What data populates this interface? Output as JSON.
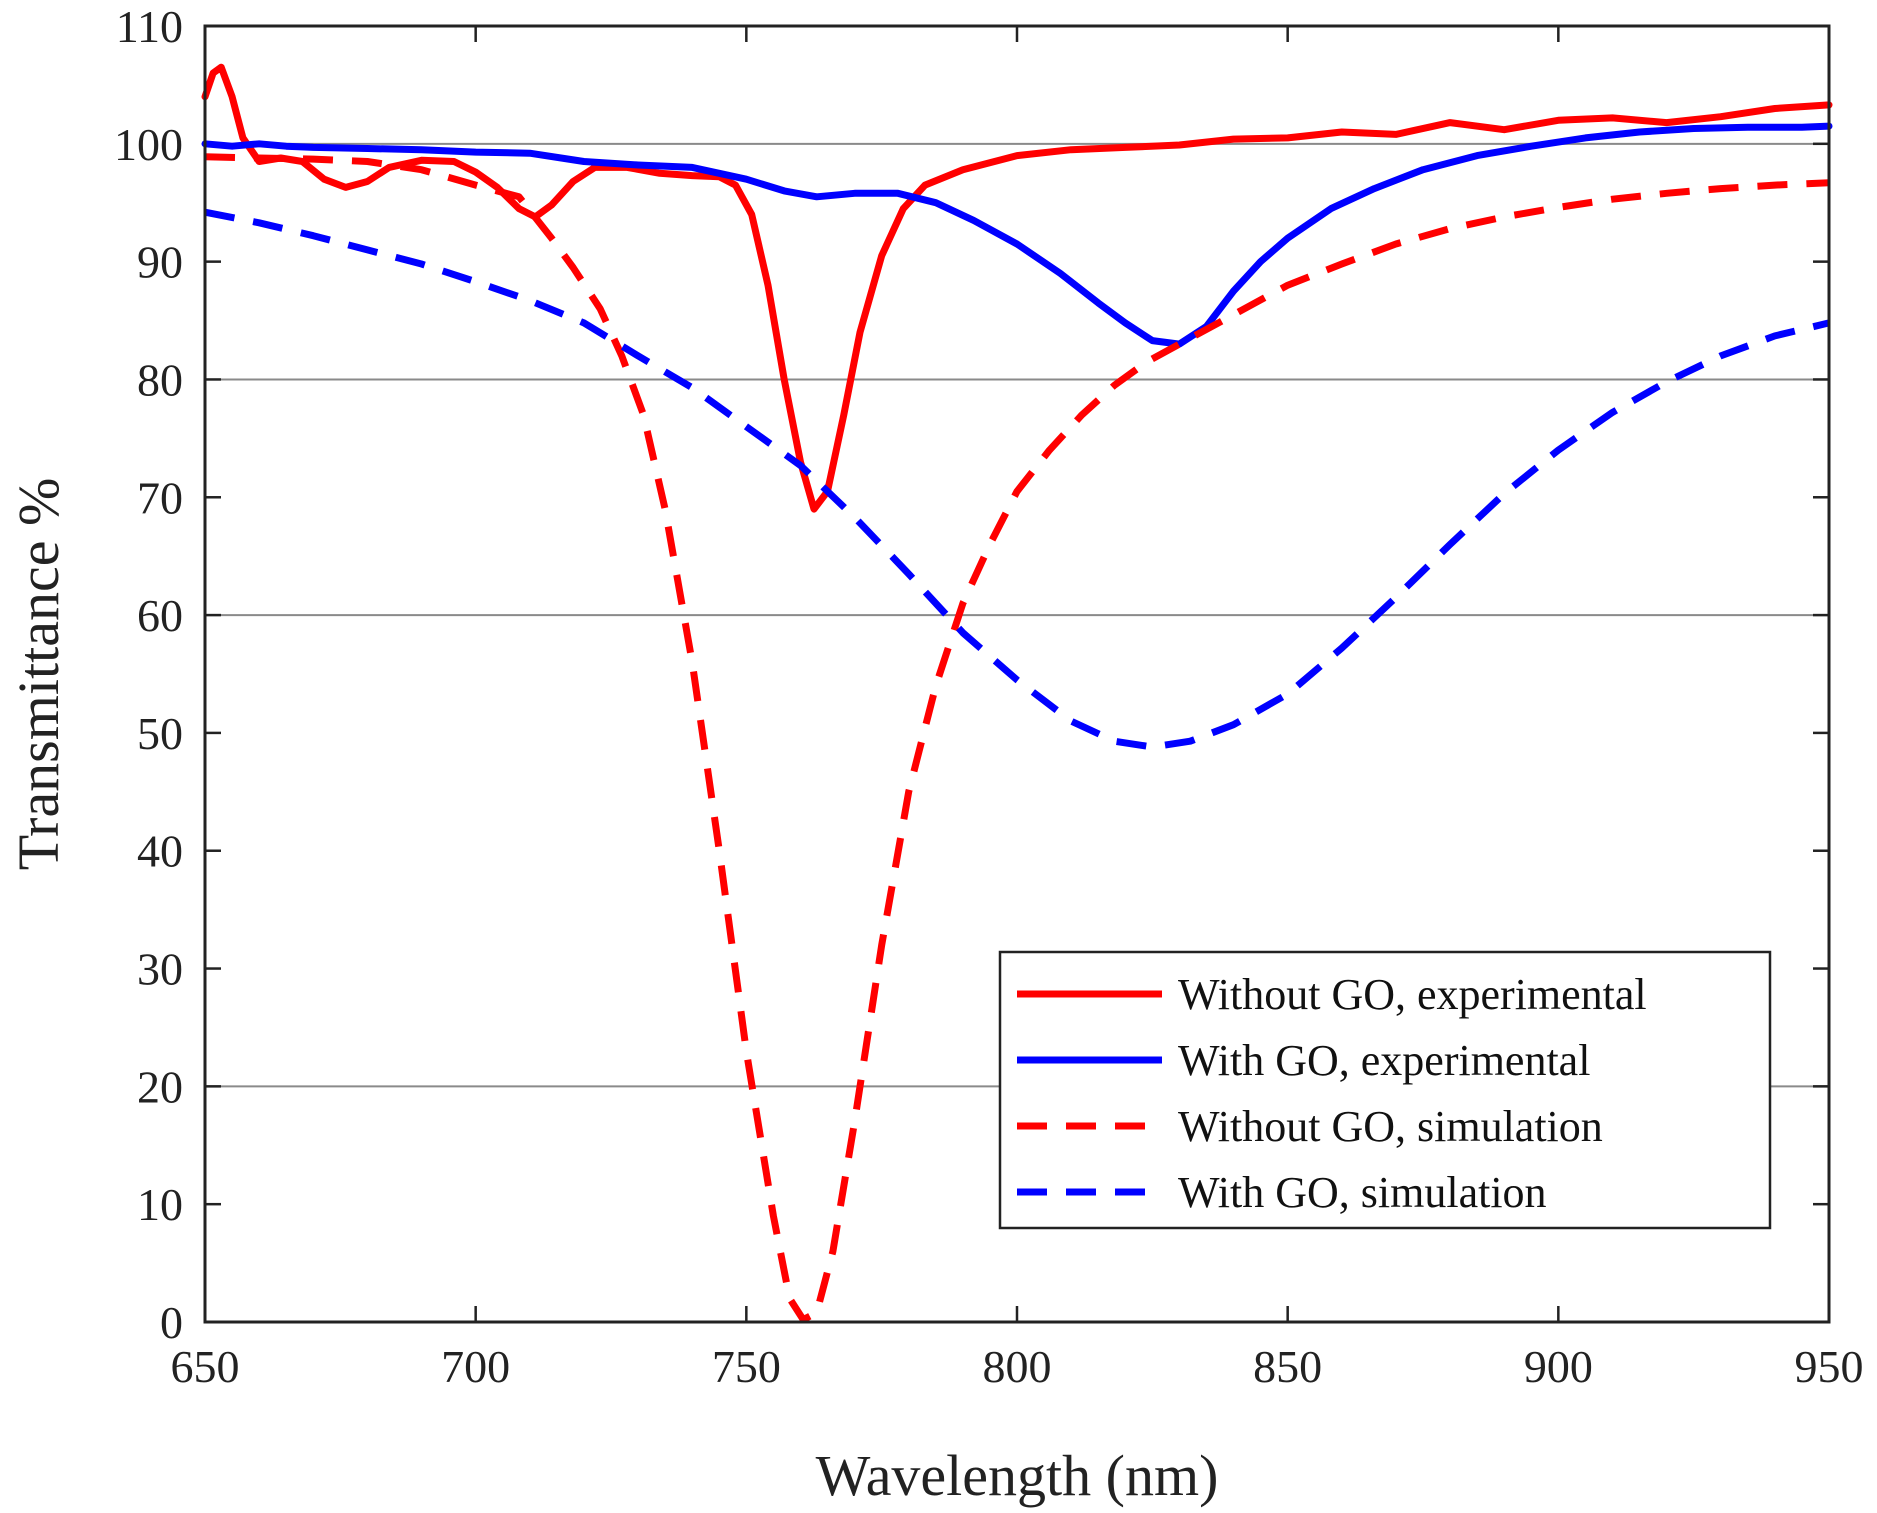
{
  "chart_data": {
    "type": "line",
    "title": "",
    "xlabel": "Wavelength (nm)",
    "ylabel": "Transmittance %",
    "xlim": [
      650,
      950
    ],
    "ylim": [
      0,
      110
    ],
    "xticks": [
      650,
      700,
      750,
      800,
      850,
      900,
      950
    ],
    "yticks": [
      0,
      10,
      20,
      30,
      40,
      50,
      60,
      70,
      80,
      90,
      100,
      110
    ],
    "grid_y": [
      20,
      60,
      80,
      100
    ],
    "legend_position": "bottom-right",
    "series": [
      {
        "name": "Without GO, experimental",
        "color": "#ff0000",
        "style": "solid",
        "points": [
          [
            650,
            104
          ],
          [
            651.5,
            106
          ],
          [
            653,
            106.5
          ],
          [
            655,
            104
          ],
          [
            657,
            100.5
          ],
          [
            660,
            98.5
          ],
          [
            664,
            98.8
          ],
          [
            668,
            98.5
          ],
          [
            672,
            97
          ],
          [
            676,
            96.3
          ],
          [
            680,
            96.8
          ],
          [
            684,
            98
          ],
          [
            690,
            98.6
          ],
          [
            696,
            98.5
          ],
          [
            700,
            97.6
          ],
          [
            704,
            96.3
          ],
          [
            708,
            94.5
          ],
          [
            711,
            93.8
          ],
          [
            714,
            94.8
          ],
          [
            718,
            96.8
          ],
          [
            722,
            98
          ],
          [
            728,
            98
          ],
          [
            734,
            97.5
          ],
          [
            740,
            97.3
          ],
          [
            745,
            97.2
          ],
          [
            748,
            96.5
          ],
          [
            751,
            94
          ],
          [
            754,
            88
          ],
          [
            757,
            80
          ],
          [
            760,
            73
          ],
          [
            762.5,
            69
          ],
          [
            765,
            70.5
          ],
          [
            768,
            77
          ],
          [
            771,
            84
          ],
          [
            775,
            90.5
          ],
          [
            779,
            94.5
          ],
          [
            783,
            96.5
          ],
          [
            790,
            97.8
          ],
          [
            800,
            99
          ],
          [
            810,
            99.5
          ],
          [
            820,
            99.7
          ],
          [
            830,
            99.9
          ],
          [
            840,
            100.4
          ],
          [
            850,
            100.5
          ],
          [
            860,
            101
          ],
          [
            870,
            100.8
          ],
          [
            880,
            101.8
          ],
          [
            890,
            101.2
          ],
          [
            900,
            102
          ],
          [
            910,
            102.2
          ],
          [
            920,
            101.8
          ],
          [
            930,
            102.3
          ],
          [
            940,
            103
          ],
          [
            950,
            103.3
          ]
        ]
      },
      {
        "name": "With GO, experimental",
        "color": "#0000ff",
        "style": "solid",
        "points": [
          [
            650,
            100
          ],
          [
            655,
            99.8
          ],
          [
            660,
            100
          ],
          [
            665,
            99.8
          ],
          [
            670,
            99.7
          ],
          [
            680,
            99.6
          ],
          [
            690,
            99.5
          ],
          [
            700,
            99.3
          ],
          [
            710,
            99.2
          ],
          [
            720,
            98.5
          ],
          [
            730,
            98.2
          ],
          [
            740,
            98
          ],
          [
            750,
            97
          ],
          [
            757,
            96
          ],
          [
            763,
            95.5
          ],
          [
            770,
            95.8
          ],
          [
            778,
            95.8
          ],
          [
            785,
            95
          ],
          [
            792,
            93.5
          ],
          [
            800,
            91.5
          ],
          [
            808,
            89
          ],
          [
            815,
            86.5
          ],
          [
            820,
            84.8
          ],
          [
            825,
            83.3
          ],
          [
            830,
            83
          ],
          [
            835,
            84.5
          ],
          [
            840,
            87.5
          ],
          [
            845,
            90
          ],
          [
            850,
            92
          ],
          [
            858,
            94.5
          ],
          [
            866,
            96.2
          ],
          [
            875,
            97.8
          ],
          [
            885,
            99
          ],
          [
            895,
            99.8
          ],
          [
            905,
            100.5
          ],
          [
            915,
            101
          ],
          [
            925,
            101.3
          ],
          [
            935,
            101.4
          ],
          [
            945,
            101.4
          ],
          [
            950,
            101.5
          ]
        ]
      },
      {
        "name": "Without GO, simulation",
        "color": "#ff0000",
        "style": "dashed",
        "points": [
          [
            650,
            98.9
          ],
          [
            660,
            98.8
          ],
          [
            670,
            98.7
          ],
          [
            680,
            98.5
          ],
          [
            690,
            97.8
          ],
          [
            700,
            96.5
          ],
          [
            708,
            95.5
          ],
          [
            714,
            92
          ],
          [
            718,
            89.5
          ],
          [
            723,
            86
          ],
          [
            727,
            82
          ],
          [
            731,
            77
          ],
          [
            735,
            69
          ],
          [
            740,
            56
          ],
          [
            745,
            40
          ],
          [
            750,
            23
          ],
          [
            755,
            9
          ],
          [
            758,
            2
          ],
          [
            760.5,
            0.2
          ],
          [
            763,
            0.8
          ],
          [
            766,
            6
          ],
          [
            770,
            17
          ],
          [
            775,
            32
          ],
          [
            780,
            45
          ],
          [
            785,
            54
          ],
          [
            790,
            61
          ],
          [
            795,
            66
          ],
          [
            800,
            70.5
          ],
          [
            806,
            74
          ],
          [
            812,
            77
          ],
          [
            818,
            79.5
          ],
          [
            824,
            81.5
          ],
          [
            830,
            83
          ],
          [
            840,
            85.5
          ],
          [
            850,
            88
          ],
          [
            860,
            89.8
          ],
          [
            870,
            91.5
          ],
          [
            880,
            92.8
          ],
          [
            890,
            93.8
          ],
          [
            900,
            94.6
          ],
          [
            910,
            95.3
          ],
          [
            920,
            95.8
          ],
          [
            930,
            96.2
          ],
          [
            940,
            96.5
          ],
          [
            950,
            96.7
          ]
        ]
      },
      {
        "name": "With GO, simulation",
        "color": "#0000ff",
        "style": "dashed",
        "points": [
          [
            650,
            94.2
          ],
          [
            660,
            93.3
          ],
          [
            670,
            92.2
          ],
          [
            680,
            91
          ],
          [
            690,
            89.8
          ],
          [
            700,
            88.3
          ],
          [
            710,
            86.7
          ],
          [
            720,
            84.8
          ],
          [
            730,
            82
          ],
          [
            740,
            79.3
          ],
          [
            750,
            76
          ],
          [
            760,
            72.7
          ],
          [
            770,
            68.3
          ],
          [
            780,
            63.5
          ],
          [
            790,
            58.5
          ],
          [
            800,
            54.5
          ],
          [
            810,
            51
          ],
          [
            818,
            49.3
          ],
          [
            825,
            48.8
          ],
          [
            832,
            49.3
          ],
          [
            840,
            50.7
          ],
          [
            850,
            53.3
          ],
          [
            860,
            57.2
          ],
          [
            870,
            61.5
          ],
          [
            880,
            66
          ],
          [
            890,
            70.3
          ],
          [
            900,
            74
          ],
          [
            910,
            77.2
          ],
          [
            920,
            79.8
          ],
          [
            930,
            82
          ],
          [
            940,
            83.7
          ],
          [
            950,
            84.8
          ]
        ]
      }
    ]
  }
}
